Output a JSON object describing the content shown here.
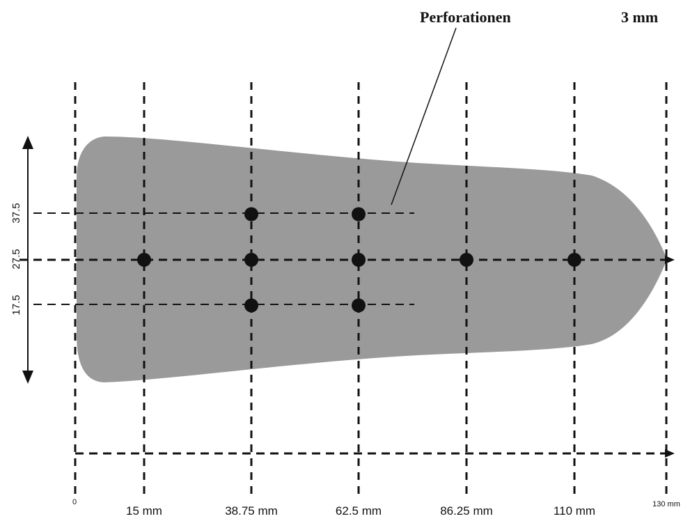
{
  "title_callout": "Perforationen",
  "thickness_label": "3 mm",
  "insole_color": "#9a9a9a",
  "line_color": "#111111",
  "x_ticks": [
    {
      "label": "0",
      "size": "tiny"
    },
    {
      "label": "15 mm",
      "size": "normal"
    },
    {
      "label": "38.75 mm",
      "size": "normal"
    },
    {
      "label": "62.5 mm",
      "size": "normal"
    },
    {
      "label": "86.25 mm",
      "size": "normal"
    },
    {
      "label": "110 mm",
      "size": "normal"
    },
    {
      "label": "130 mm",
      "size": "tiny"
    }
  ],
  "y_ticks": [
    "37.5",
    "27.5",
    "17.5"
  ],
  "perforations": [
    {
      "x_mm": 15,
      "y_mm": 27.5
    },
    {
      "x_mm": 38.75,
      "y_mm": 37.5
    },
    {
      "x_mm": 38.75,
      "y_mm": 27.5
    },
    {
      "x_mm": 38.75,
      "y_mm": 17.5
    },
    {
      "x_mm": 62.5,
      "y_mm": 37.5
    },
    {
      "x_mm": 62.5,
      "y_mm": 27.5
    },
    {
      "x_mm": 62.5,
      "y_mm": 17.5
    },
    {
      "x_mm": 86.25,
      "y_mm": 27.5
    },
    {
      "x_mm": 110,
      "y_mm": 27.5
    }
  ]
}
